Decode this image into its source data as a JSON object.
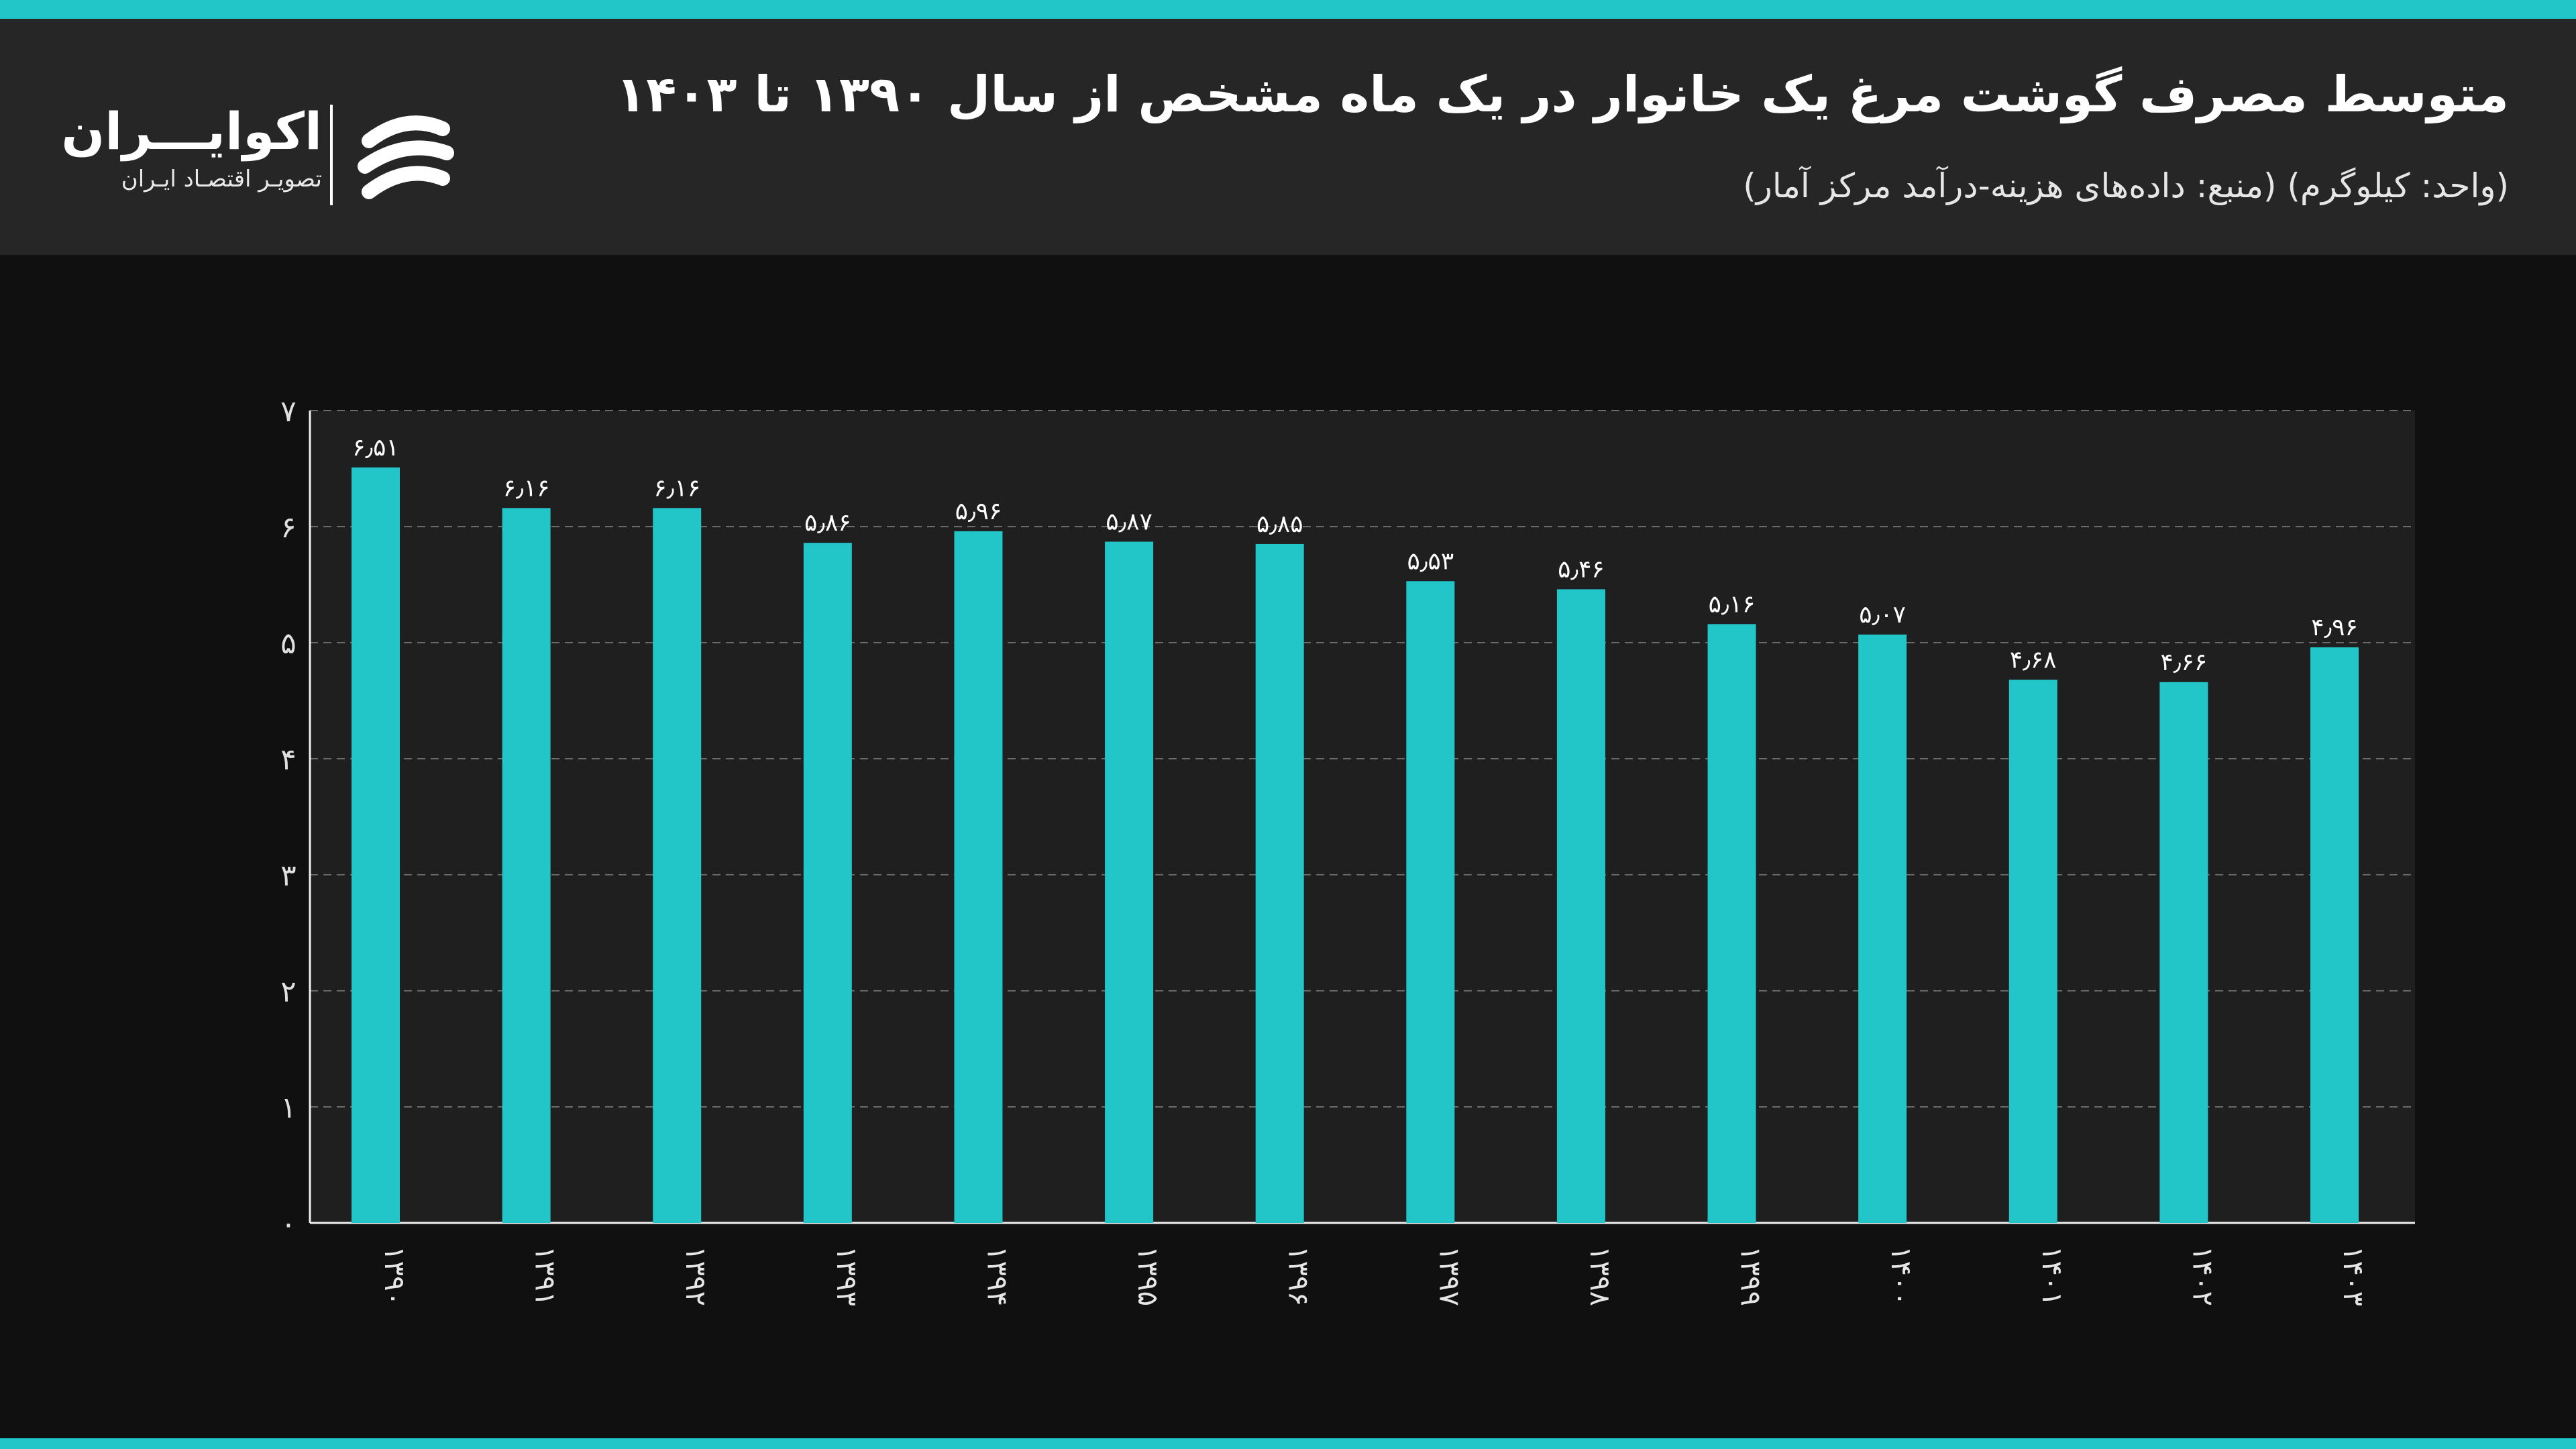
{
  "header": {
    "title": "متوسط مصرف گوشت مرغ یک خانوار در یک ماه مشخص از سال ۱۳۹۰ تا ۱۴۰۳",
    "subtitle": "(واحد: کیلوگرم) (منبع: داده‌های هزینه-درآمد مرکز آمار)"
  },
  "logo": {
    "name": "اکوایـــران",
    "tagline": "تصویـر اقتصـاد ایـران",
    "icon": "ecoiran-logo-icon"
  },
  "colors": {
    "accent": "#22c6c9",
    "header_bg": "#262626",
    "page_bg": "#111011",
    "plot_bg": "#1f1f20"
  },
  "chart_data": {
    "type": "bar",
    "categories": [
      "۱۳۹۰",
      "۱۳۹۱",
      "۱۳۹۲",
      "۱۳۹۳",
      "۱۳۹۴",
      "۱۳۹۵",
      "۱۳۹۶",
      "۱۳۹۷",
      "۱۳۹۸",
      "۱۳۹۹",
      "۱۴۰۰",
      "۱۴۰۱",
      "۱۴۰۲",
      "۱۴۰۳"
    ],
    "values": [
      6.51,
      6.16,
      6.16,
      5.86,
      5.96,
      5.87,
      5.85,
      5.53,
      5.46,
      5.16,
      5.07,
      4.68,
      4.66,
      4.96
    ],
    "value_labels": [
      "۶٫۵۱",
      "۶٫۱۶",
      "۶٫۱۶",
      "۵٫۸۶",
      "۵٫۹۶",
      "۵٫۸۷",
      "۵٫۸۵",
      "۵٫۵۳",
      "۵٫۴۶",
      "۵٫۱۶",
      "۵٫۰۷",
      "۴٫۶۸",
      "۴٫۶۶",
      "۴٫۹۶"
    ],
    "y_ticks": [
      0,
      1,
      2,
      3,
      4,
      5,
      6,
      7
    ],
    "y_tick_labels": [
      "۰",
      "۱",
      "۲",
      "۳",
      "۴",
      "۵",
      "۶",
      "۷"
    ],
    "ylim": [
      0,
      7
    ],
    "grid": true,
    "legend": "none",
    "bar_color": "#22c6c9"
  }
}
